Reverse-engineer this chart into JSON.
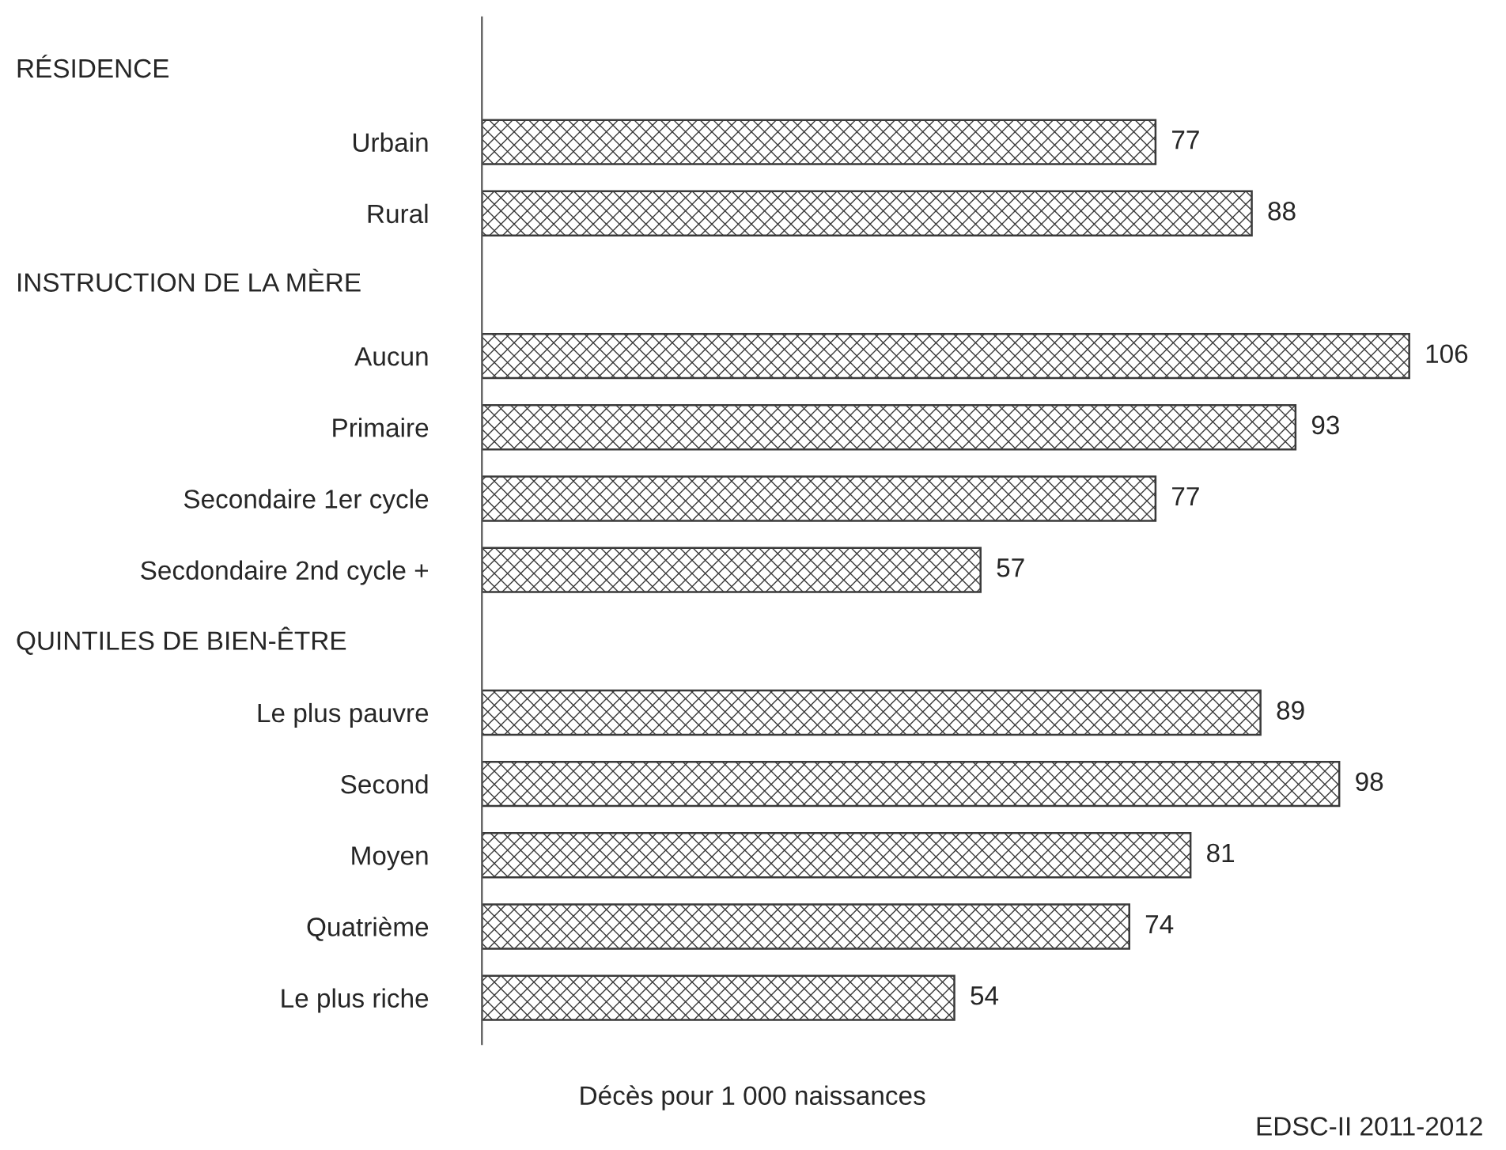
{
  "chart_data": {
    "type": "bar",
    "orientation": "horizontal",
    "categories": [
      null,
      "Urbain",
      "Rural",
      null,
      "Aucun",
      "Primaire",
      "Secondaire 1er cycle",
      "Secdondaire 2nd cycle +",
      null,
      "Le plus pauvre",
      "Second",
      "Moyen",
      "Quatrième",
      "Le plus riche"
    ],
    "values": [
      null,
      77,
      88,
      null,
      106,
      93,
      77,
      57,
      null,
      89,
      98,
      81,
      74,
      54
    ],
    "color": "#3a3a3a",
    "data_labels": true,
    "xlabel": "Décès pour 1 000 naissances",
    "annotations": [
      "RÉSIDENCE",
      "INSTRUCTION DE LA MÈRE",
      "QUINTILES DE BIEN-ÊTRE",
      "EDSC-II 2011-2012"
    ],
    "tick_labels": "y",
    "grid": false,
    "legend": false
  }
}
